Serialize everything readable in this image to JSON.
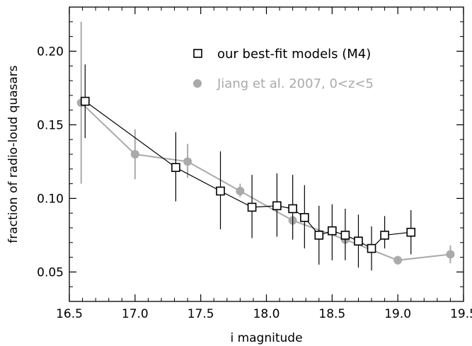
{
  "chart_data": {
    "type": "line",
    "xlabel": "i magnitude",
    "ylabel": "fraction of radio-loud quasars",
    "xlim": [
      16.5,
      19.5
    ],
    "ylim": [
      0.03,
      0.23
    ],
    "xticks": [
      "16.5",
      "17.0",
      "17.5",
      "18.0",
      "18.5",
      "19.0",
      "19.5"
    ],
    "yticks": [
      "0.05",
      "0.10",
      "0.15",
      "0.20"
    ],
    "grid": false,
    "legend_position": "top-right",
    "series": [
      {
        "name": "our best-fit models (M4)",
        "color": "#000000",
        "marker": "open-square",
        "points": [
          {
            "x": 16.62,
            "y": 0.166,
            "lo": 0.141,
            "hi": 0.191
          },
          {
            "x": 17.31,
            "y": 0.121,
            "lo": 0.098,
            "hi": 0.145
          },
          {
            "x": 17.65,
            "y": 0.105,
            "lo": 0.079,
            "hi": 0.132
          },
          {
            "x": 17.89,
            "y": 0.094,
            "lo": 0.073,
            "hi": 0.116
          },
          {
            "x": 18.08,
            "y": 0.095,
            "lo": 0.074,
            "hi": 0.117
          },
          {
            "x": 18.2,
            "y": 0.093,
            "lo": 0.072,
            "hi": 0.116
          },
          {
            "x": 18.29,
            "y": 0.087,
            "lo": 0.066,
            "hi": 0.109
          },
          {
            "x": 18.4,
            "y": 0.075,
            "lo": 0.055,
            "hi": 0.095
          },
          {
            "x": 18.5,
            "y": 0.078,
            "lo": 0.058,
            "hi": 0.096
          },
          {
            "x": 18.6,
            "y": 0.075,
            "lo": 0.058,
            "hi": 0.093
          },
          {
            "x": 18.7,
            "y": 0.071,
            "lo": 0.053,
            "hi": 0.089
          },
          {
            "x": 18.8,
            "y": 0.066,
            "lo": 0.051,
            "hi": 0.081
          },
          {
            "x": 18.9,
            "y": 0.075,
            "lo": 0.066,
            "hi": 0.088
          },
          {
            "x": 19.1,
            "y": 0.077,
            "lo": 0.062,
            "hi": 0.092
          }
        ]
      },
      {
        "name": "Jiang et al. 2007, 0<z<5",
        "color": "#aaaaaa",
        "marker": "filled-circle",
        "points": [
          {
            "x": 16.59,
            "y": 0.165,
            "lo": 0.11,
            "hi": 0.22
          },
          {
            "x": 17.0,
            "y": 0.13,
            "lo": 0.113,
            "hi": 0.147
          },
          {
            "x": 17.4,
            "y": 0.125,
            "lo": 0.114,
            "hi": 0.137
          },
          {
            "x": 17.8,
            "y": 0.105,
            "lo": 0.101,
            "hi": 0.11
          },
          {
            "x": 18.2,
            "y": 0.085,
            "lo": 0.082,
            "hi": 0.088
          },
          {
            "x": 18.6,
            "y": 0.072,
            "lo": 0.07,
            "hi": 0.075
          },
          {
            "x": 19.0,
            "y": 0.058,
            "lo": 0.055,
            "hi": 0.061
          },
          {
            "x": 19.4,
            "y": 0.062,
            "lo": 0.056,
            "hi": 0.068
          }
        ]
      }
    ]
  }
}
